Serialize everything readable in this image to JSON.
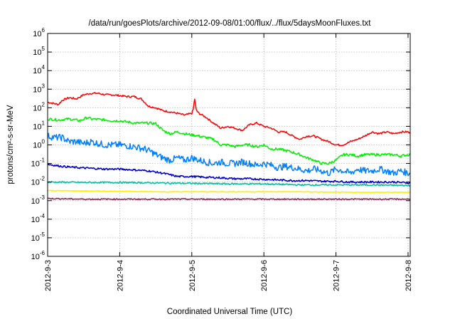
{
  "chart_data": {
    "type": "line",
    "title": "/data/run/goesPlots/archive/2012-09-08/01:00/flux/../flux/5daysMoonFluxes.txt",
    "xlabel": "Coordinated Universal Time (UTC)",
    "ylabel": "protons/cm²-s-sr-MeV",
    "y_scale": "log",
    "ylim": [
      1e-06,
      1000000.0
    ],
    "xlim": [
      0,
      5.03
    ],
    "grid": true,
    "x_ticks": [
      {
        "x": 0,
        "label": "2012-9-3"
      },
      {
        "x": 1,
        "label": "2012-9-4"
      },
      {
        "x": 2,
        "label": "2012-9-5"
      },
      {
        "x": 3,
        "label": "2012-9-6"
      },
      {
        "x": 4,
        "label": "2012-9-7"
      },
      {
        "x": 5,
        "label": "2012-9-8"
      }
    ],
    "y_ticks": [
      {
        "value": 1e-06,
        "base": "10",
        "exp": "-6"
      },
      {
        "value": 1e-05,
        "base": "10",
        "exp": "-5"
      },
      {
        "value": 0.0001,
        "base": "10",
        "exp": "-4"
      },
      {
        "value": 0.001,
        "base": "10",
        "exp": "-3"
      },
      {
        "value": 0.01,
        "base": "10",
        "exp": "-2"
      },
      {
        "value": 0.1,
        "base": "10",
        "exp": "-1"
      },
      {
        "value": 1,
        "base": "10",
        "exp": "0"
      },
      {
        "value": 10,
        "base": "10",
        "exp": "1"
      },
      {
        "value": 100,
        "base": "10",
        "exp": "2"
      },
      {
        "value": 1000,
        "base": "10",
        "exp": "3"
      },
      {
        "value": 10000,
        "base": "10",
        "exp": "4"
      },
      {
        "value": 100000,
        "base": "10",
        "exp": "5"
      },
      {
        "value": 1000000,
        "base": "10",
        "exp": "6"
      }
    ],
    "series": [
      {
        "color": "#ff0000",
        "x": [
          0,
          0.15,
          0.2,
          0.3,
          0.4,
          0.5,
          0.6,
          0.7,
          0.8,
          0.9,
          1.0,
          1.1,
          1.2,
          1.3,
          1.4,
          1.5,
          1.6,
          1.7,
          1.8,
          1.9,
          2.0,
          2.02,
          2.04,
          2.06,
          2.08,
          2.1,
          2.2,
          2.3,
          2.4,
          2.5,
          2.6,
          2.7,
          2.8,
          2.9,
          3.0,
          3.1,
          3.2,
          3.3,
          3.4,
          3.5,
          3.6,
          3.7,
          3.8,
          3.9,
          4.0,
          4.1,
          4.2,
          4.3,
          4.4,
          4.5,
          4.6,
          4.7,
          4.8,
          4.9,
          5.0,
          5.03
        ],
        "y": [
          200,
          150,
          250,
          350,
          300,
          500,
          600,
          600,
          500,
          500,
          450,
          400,
          400,
          300,
          120,
          100,
          70,
          60,
          50,
          40,
          50,
          80,
          300,
          80,
          60,
          50,
          30,
          15,
          8,
          10,
          8,
          6,
          12,
          15,
          10,
          8,
          5,
          5,
          3,
          2,
          3,
          3,
          2,
          1.5,
          1,
          1,
          1.5,
          2,
          3,
          5,
          4,
          5,
          4,
          5,
          5,
          4
        ]
      },
      {
        "color": "#00ee00",
        "x": [
          0,
          0.15,
          0.3,
          0.45,
          0.55,
          0.6,
          0.8,
          0.9,
          1.0,
          1.2,
          1.4,
          1.5,
          1.6,
          1.7,
          1.8,
          1.9,
          2.0,
          2.1,
          2.2,
          2.3,
          2.4,
          2.5,
          2.6,
          2.7,
          2.8,
          2.9,
          3.0,
          3.1,
          3.2,
          3.3,
          3.4,
          3.5,
          3.6,
          3.7,
          3.8,
          3.9,
          4.0,
          4.1,
          4.2,
          4.3,
          4.4,
          4.5,
          4.6,
          4.7,
          4.8,
          4.9,
          5.0,
          5.03
        ],
        "y": [
          25,
          22,
          25,
          20,
          30,
          25,
          22,
          20,
          20,
          15,
          15,
          14,
          6,
          4,
          5,
          4,
          3.5,
          3,
          2.5,
          2,
          1,
          1,
          0.8,
          1,
          1,
          0.8,
          1,
          0.6,
          0.6,
          0.5,
          0.4,
          0.3,
          0.2,
          0.15,
          0.1,
          0.1,
          0.15,
          0.3,
          0.3,
          0.25,
          0.3,
          0.3,
          0.3,
          0.3,
          0.3,
          0.25,
          0.3,
          0.3
        ]
      },
      {
        "color": "#0080ff",
        "x": [
          0,
          0.1,
          0.2,
          0.3,
          0.4,
          0.5,
          0.6,
          0.7,
          0.8,
          0.9,
          1.0,
          1.2,
          1.35,
          1.45,
          1.5,
          1.6,
          1.7,
          1.8,
          1.9,
          2.0,
          2.1,
          2.2,
          2.3,
          2.4,
          2.5,
          2.6,
          2.7,
          2.8,
          2.9,
          3.0,
          3.1,
          3.2,
          3.3,
          3.4,
          3.5,
          3.6,
          3.7,
          3.8,
          3.9,
          4.0,
          4.1,
          4.2,
          4.3,
          4.4,
          4.5,
          4.6,
          4.7,
          4.8,
          4.9,
          5.0,
          5.03
        ],
        "y": [
          3,
          2.5,
          2.5,
          1.5,
          1.5,
          1.2,
          1.5,
          1.2,
          1,
          1,
          1,
          0.8,
          0.6,
          0.4,
          0.3,
          0.2,
          0.15,
          0.2,
          0.15,
          0.2,
          0.15,
          0.12,
          0.1,
          0.12,
          0.1,
          0.1,
          0.12,
          0.1,
          0.08,
          0.1,
          0.08,
          0.06,
          0.07,
          0.06,
          0.05,
          0.04,
          0.05,
          0.04,
          0.03,
          0.05,
          0.04,
          0.03,
          0.05,
          0.04,
          0.04,
          0.05,
          0.04,
          0.03,
          0.04,
          0.03,
          0.03
        ]
      },
      {
        "color": "#0000cc",
        "x": [
          0,
          0.2,
          0.4,
          0.6,
          0.8,
          1.0,
          1.2,
          1.4,
          1.6,
          1.8,
          2.0,
          2.2,
          2.4,
          2.6,
          2.8,
          3.0,
          3.2,
          3.4,
          3.6,
          3.8,
          4.0,
          4.2,
          4.4,
          4.6,
          4.8,
          5.0,
          5.03
        ],
        "y": [
          0.09,
          0.07,
          0.06,
          0.055,
          0.05,
          0.05,
          0.045,
          0.04,
          0.03,
          0.02,
          0.02,
          0.018,
          0.017,
          0.015,
          0.015,
          0.014,
          0.013,
          0.012,
          0.012,
          0.011,
          0.011,
          0.01,
          0.01,
          0.01,
          0.01,
          0.009,
          0.009
        ]
      },
      {
        "color": "#00c0a0",
        "x": [
          0,
          0.5,
          1.0,
          1.5,
          2.0,
          2.5,
          3.0,
          3.5,
          4.0,
          4.5,
          5.0,
          5.03
        ],
        "y": [
          0.01,
          0.0095,
          0.0095,
          0.009,
          0.0085,
          0.008,
          0.008,
          0.007,
          0.007,
          0.007,
          0.0065,
          0.0065
        ]
      },
      {
        "color": "#ffee00",
        "x": [
          0,
          0.5,
          1.0,
          1.5,
          2.0,
          2.5,
          3.0,
          3.5,
          4.0,
          4.5,
          5.0,
          5.03
        ],
        "y": [
          0.0035,
          0.0033,
          0.0032,
          0.003,
          0.003,
          0.003,
          0.003,
          0.003,
          0.0028,
          0.0028,
          0.0028,
          0.0028
        ]
      },
      {
        "color": "#8b2252",
        "x": [
          0,
          0.5,
          1.0,
          1.5,
          2.0,
          2.5,
          3.0,
          3.5,
          4.0,
          4.5,
          5.0,
          5.03
        ],
        "y": [
          0.0013,
          0.0012,
          0.0012,
          0.0012,
          0.0012,
          0.0012,
          0.0012,
          0.0012,
          0.0012,
          0.0012,
          0.0012,
          0.0012
        ]
      }
    ]
  }
}
